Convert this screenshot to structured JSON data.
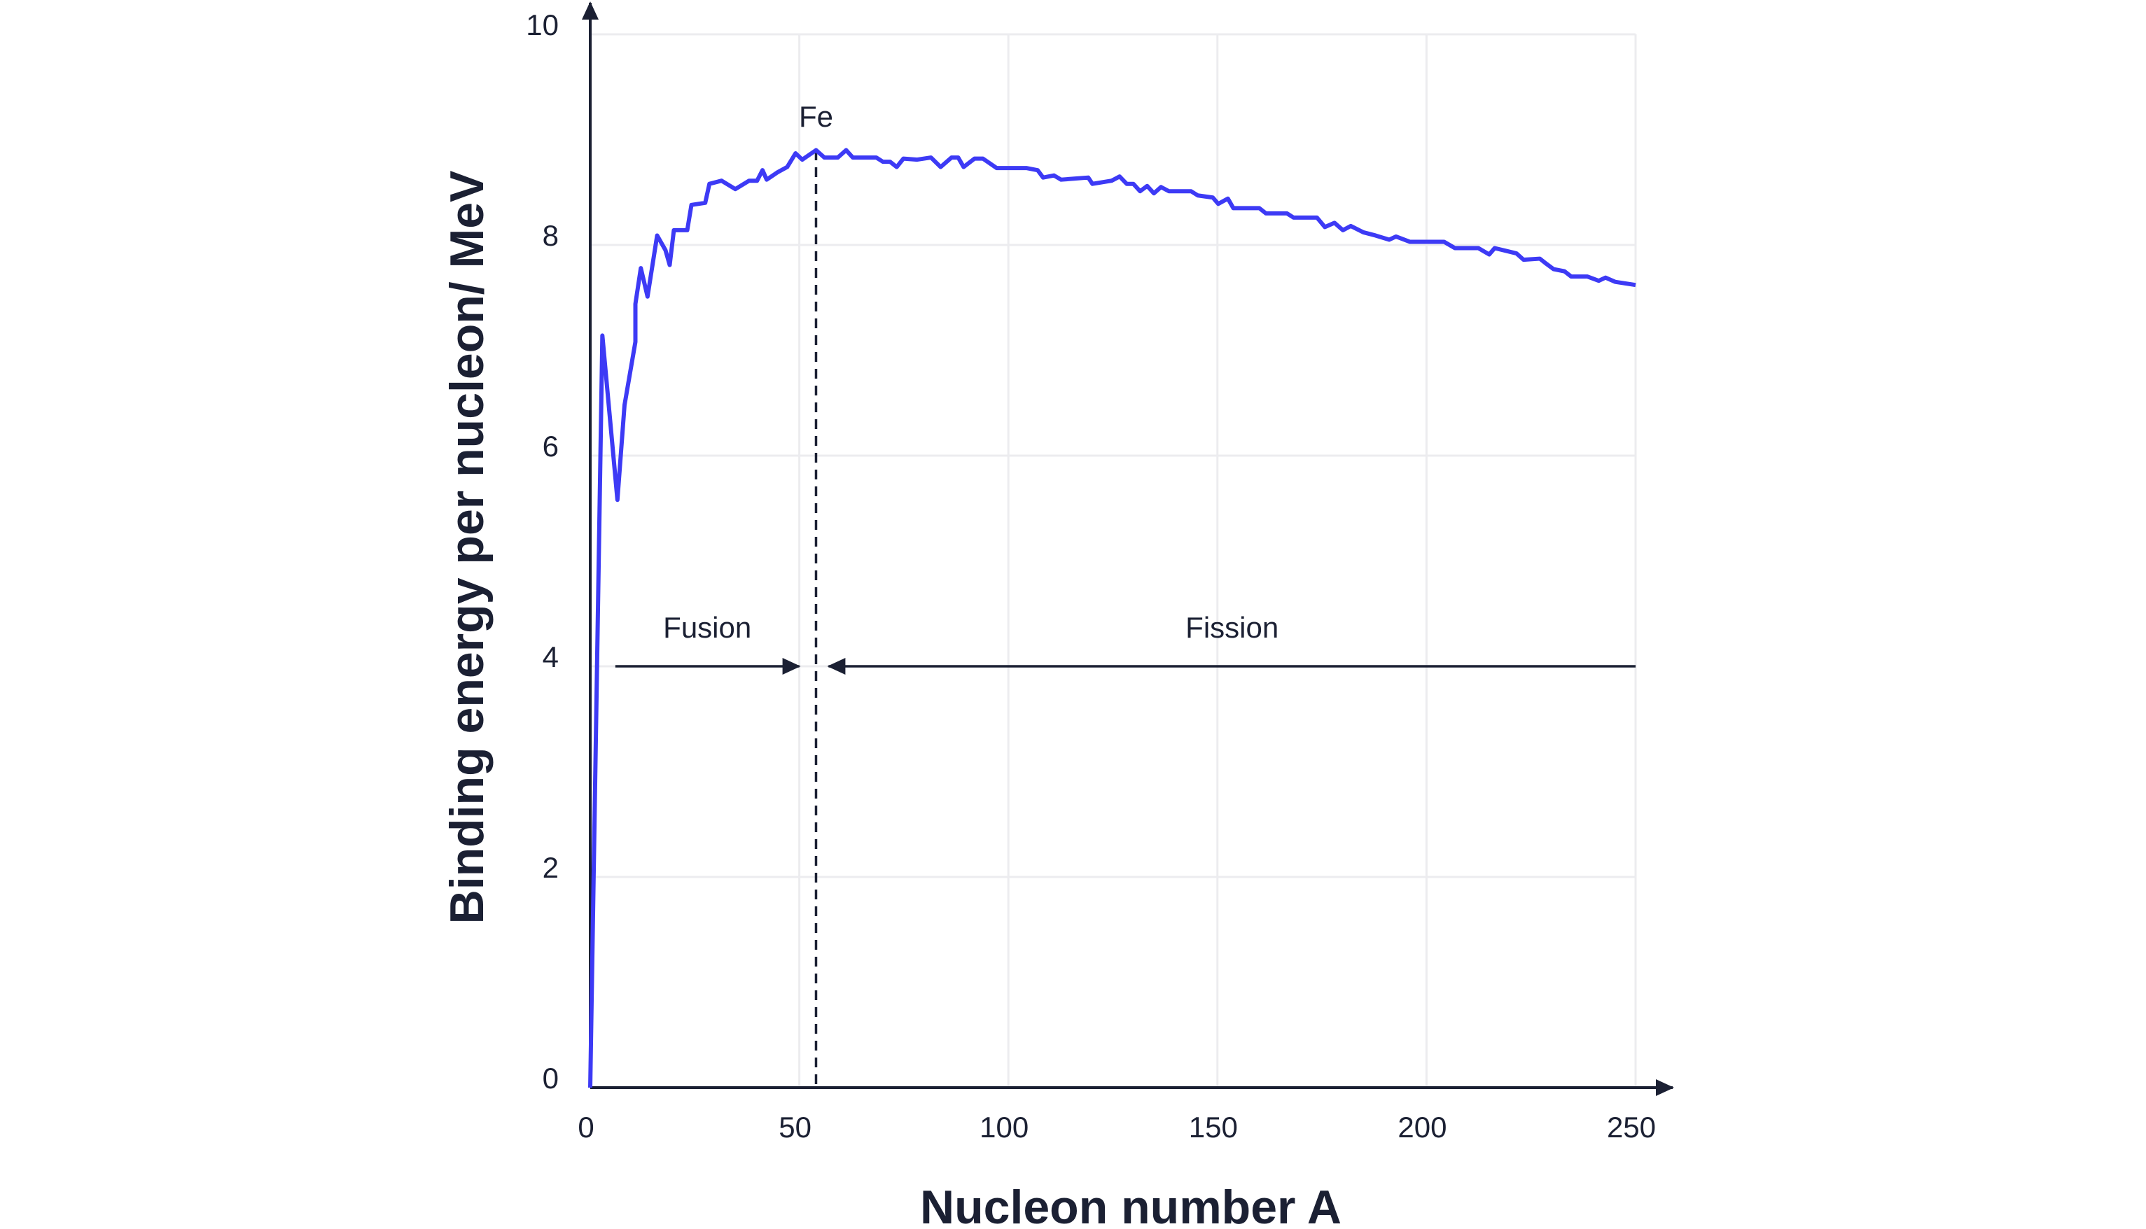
{
  "chart_data": {
    "type": "line",
    "x_label": "Nucleon number A",
    "y_label": "Binding energy per nucleon/ MeV",
    "x": [
      0,
      2.9,
      6.5,
      8.2,
      10.8,
      10.8,
      12.1,
      13.7,
      16.0,
      18.0,
      19.0,
      20.0,
      23.2,
      24.2,
      27.5,
      28.5,
      31.4,
      34.7,
      38.0,
      39.9,
      41.2,
      42.2,
      44.8,
      47.1,
      49.1,
      50.7,
      54.0,
      56.0,
      59.2,
      61.2,
      62.8,
      68.4,
      70.0,
      71.7,
      73.3,
      74.9,
      78.2,
      81.5,
      83.8,
      86.4,
      88.0,
      89.3,
      91.9,
      93.9,
      97.2,
      104.4,
      107.0,
      108.3,
      110.9,
      112.6,
      119.1,
      120.1,
      124.7,
      126.6,
      128.3,
      129.9,
      131.5,
      133.2,
      134.8,
      136.5,
      138.4,
      143.7,
      145.3,
      148.9,
      150.2,
      152.5,
      153.8,
      160.0,
      161.6,
      166.6,
      168.2,
      173.8,
      175.7,
      178.0,
      180.0,
      181.9,
      184.9,
      187.8,
      191.1,
      192.7,
      196.0,
      204.2,
      206.8,
      212.4,
      215.0,
      216.3,
      221.5,
      223.2,
      227.1,
      228.7,
      230.4,
      233.0,
      234.6,
      238.5,
      241.2,
      242.8,
      245.1,
      250
    ],
    "series": [
      {
        "color": "#3d3af5",
        "values": [
          0,
          7.14,
          5.58,
          6.48,
          7.08,
          7.44,
          7.78,
          7.51,
          8.09,
          7.95,
          7.81,
          8.14,
          8.14,
          8.38,
          8.4,
          8.58,
          8.61,
          8.53,
          8.61,
          8.61,
          8.71,
          8.62,
          8.69,
          8.74,
          8.87,
          8.81,
          8.9,
          8.83,
          8.83,
          8.9,
          8.83,
          8.83,
          8.79,
          8.79,
          8.74,
          8.82,
          8.81,
          8.83,
          8.74,
          8.83,
          8.83,
          8.74,
          8.82,
          8.82,
          8.73,
          8.73,
          8.71,
          8.64,
          8.66,
          8.62,
          8.64,
          8.58,
          8.61,
          8.65,
          8.58,
          8.58,
          8.51,
          8.56,
          8.49,
          8.55,
          8.51,
          8.51,
          8.47,
          8.45,
          8.39,
          8.44,
          8.35,
          8.35,
          8.3,
          8.3,
          8.26,
          8.26,
          8.17,
          8.21,
          8.14,
          8.18,
          8.12,
          8.09,
          8.05,
          8.08,
          8.03,
          8.03,
          7.97,
          7.97,
          7.91,
          7.97,
          7.92,
          7.86,
          7.87,
          7.82,
          7.77,
          7.75,
          7.7,
          7.7,
          7.66,
          7.69,
          7.65,
          7.62
        ]
      }
    ],
    "xlim": [
      0,
      250
    ],
    "ylim": [
      0,
      10
    ],
    "xticks": [
      0,
      50,
      100,
      150,
      200,
      250
    ],
    "yticks": [
      0,
      2,
      4,
      6,
      8,
      10
    ],
    "grid": true,
    "marker_line": {
      "label": "Fe",
      "x": 54
    },
    "regions": [
      {
        "label": "Fusion",
        "from": 6,
        "to": 50
      },
      {
        "label": "Fission",
        "from": 250,
        "to": 57
      }
    ]
  }
}
